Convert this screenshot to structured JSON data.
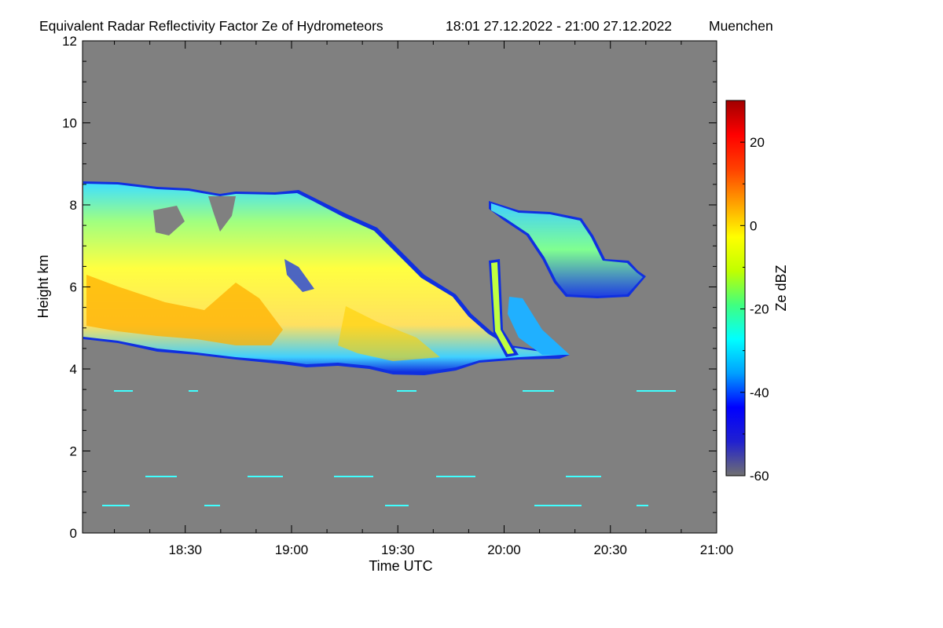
{
  "chart_data": {
    "type": "heatmap",
    "title": "Equivalent Radar Reflectivity Factor Ze of Hydrometeors",
    "time_range": "18:01 27.12.2022 - 21:00 27.12.2022",
    "station": "Muenchen",
    "xlabel": "Time UTC",
    "ylabel": "Height km",
    "x_ticks": [
      "18:30",
      "19:00",
      "19:30",
      "20:00",
      "20:30",
      "21:00"
    ],
    "x_tick_values": [
      30,
      60,
      90,
      120,
      150,
      180
    ],
    "xlim": [
      1,
      180
    ],
    "y_ticks": [
      "0",
      "2",
      "4",
      "6",
      "8",
      "10",
      "12"
    ],
    "y_tick_values": [
      0,
      2,
      4,
      6,
      8,
      10,
      12
    ],
    "ylim": [
      0,
      12
    ],
    "colorbar": {
      "label": "Ze dBZ",
      "ticks": [
        "20",
        "0",
        "-20",
        "-40",
        "-60"
      ],
      "tick_values": [
        20,
        0,
        -20,
        -40,
        -60
      ],
      "range": [
        -60,
        30
      ],
      "colors": [
        "#707070",
        "#2020d0",
        "#0000ff",
        "#00a0ff",
        "#00ffff",
        "#40ff80",
        "#c0ff00",
        "#ffff00",
        "#ffa000",
        "#ff4000",
        "#ff0000",
        "#a00000"
      ]
    },
    "background_color": "#808080",
    "features": [
      {
        "name": "main-cloud",
        "ze_range_dbz": [
          -40,
          5
        ],
        "start_min": 1,
        "end_min": 140,
        "base_km_start": 4.7,
        "base_km_end": 4.3,
        "top_km_start": 8.6,
        "top_km_end": 5.5,
        "core_dbz": 5
      },
      {
        "name": "fall-streak",
        "ze_range_dbz": [
          -20,
          -5
        ],
        "start_min": 115,
        "end_min": 118,
        "base_km": 4.3,
        "top_km": 6.6
      },
      {
        "name": "upper-cloud",
        "ze_range_dbz": [
          -35,
          -15
        ],
        "start_min": 116,
        "end_min": 161,
        "base_km": 5.4,
        "top_km": 8.0
      }
    ]
  }
}
